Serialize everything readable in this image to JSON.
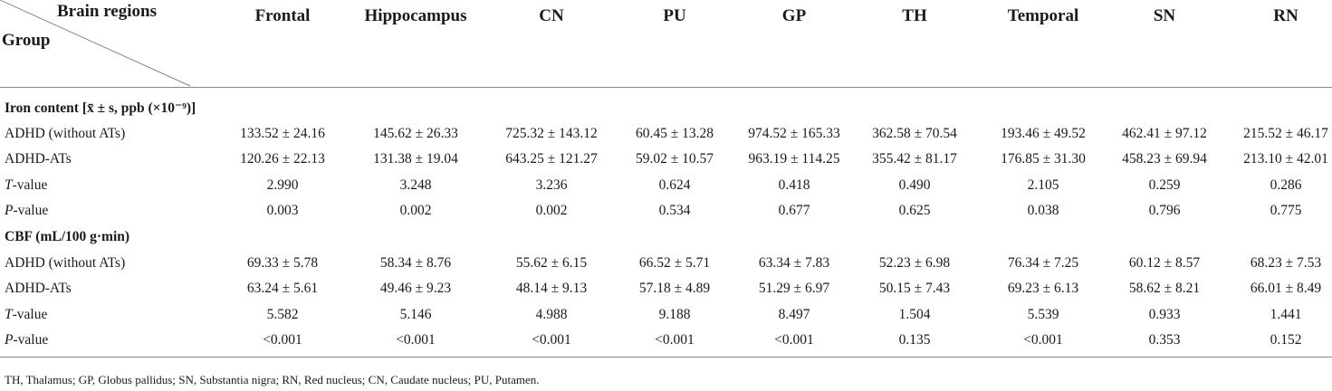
{
  "header": {
    "corner_top": "Brain regions",
    "corner_bottom": "Group",
    "columns": [
      "Frontal",
      "Hippocampus",
      "CN",
      "PU",
      "GP",
      "TH",
      "Temporal",
      "SN",
      "RN"
    ]
  },
  "sections": [
    {
      "title": "Iron content [x̄ ± s, ppb (×10⁻⁹)]",
      "rows": [
        {
          "label": "ADHD (without ATs)",
          "values": [
            "133.52 ± 24.16",
            "145.62 ± 26.33",
            "725.32 ± 143.12",
            "60.45 ± 13.28",
            "974.52 ± 165.33",
            "362.58 ± 70.54",
            "193.46 ± 49.52",
            "462.41 ± 97.12",
            "215.52 ± 46.17"
          ]
        },
        {
          "label": "ADHD-ATs",
          "values": [
            "120.26 ± 22.13",
            "131.38 ± 19.04",
            "643.25 ± 121.27",
            "59.02 ± 10.57",
            "963.19 ± 114.25",
            "355.42 ± 81.17",
            "176.85 ± 31.30",
            "458.23 ± 69.94",
            "213.10 ± 42.01"
          ]
        },
        {
          "label_italic": "T",
          "label_rest": "-value",
          "values": [
            "2.990",
            "3.248",
            "3.236",
            "0.624",
            "0.418",
            "0.490",
            "2.105",
            "0.259",
            "0.286"
          ]
        },
        {
          "label_italic": "P",
          "label_rest": "-value",
          "values": [
            "0.003",
            "0.002",
            "0.002",
            "0.534",
            "0.677",
            "0.625",
            "0.038",
            "0.796",
            "0.775"
          ]
        }
      ]
    },
    {
      "title": "CBF (mL/100 g·min)",
      "rows": [
        {
          "label": "ADHD (without ATs)",
          "values": [
            "69.33 ± 5.78",
            "58.34 ± 8.76",
            "55.62 ± 6.15",
            "66.52 ± 5.71",
            "63.34 ± 7.83",
            "52.23 ± 6.98",
            "76.34 ± 7.25",
            "60.12 ± 8.57",
            "68.23 ± 7.53"
          ]
        },
        {
          "label": "ADHD-ATs",
          "values": [
            "63.24 ± 5.61",
            "49.46 ± 9.23",
            "48.14 ± 9.13",
            "57.18 ± 4.89",
            "51.29 ± 6.97",
            "50.15 ± 7.43",
            "69.23 ± 6.13",
            "58.62 ± 8.21",
            "66.01 ± 8.49"
          ]
        },
        {
          "label_italic": "T",
          "label_rest": "-value",
          "values": [
            "5.582",
            "5.146",
            "4.988",
            "9.188",
            "8.497",
            "1.504",
            "5.539",
            "0.933",
            "1.441"
          ]
        },
        {
          "label_italic": "P",
          "label_rest": "-value",
          "values": [
            "<0.001",
            "<0.001",
            "<0.001",
            "<0.001",
            "<0.001",
            "0.135",
            "<0.001",
            "0.353",
            "0.152"
          ]
        }
      ]
    }
  ],
  "footnote": "TH, Thalamus; GP, Globus pallidus; SN, Substantia nigra; RN, Red nucleus; CN, Caudate nucleus; PU, Putamen."
}
